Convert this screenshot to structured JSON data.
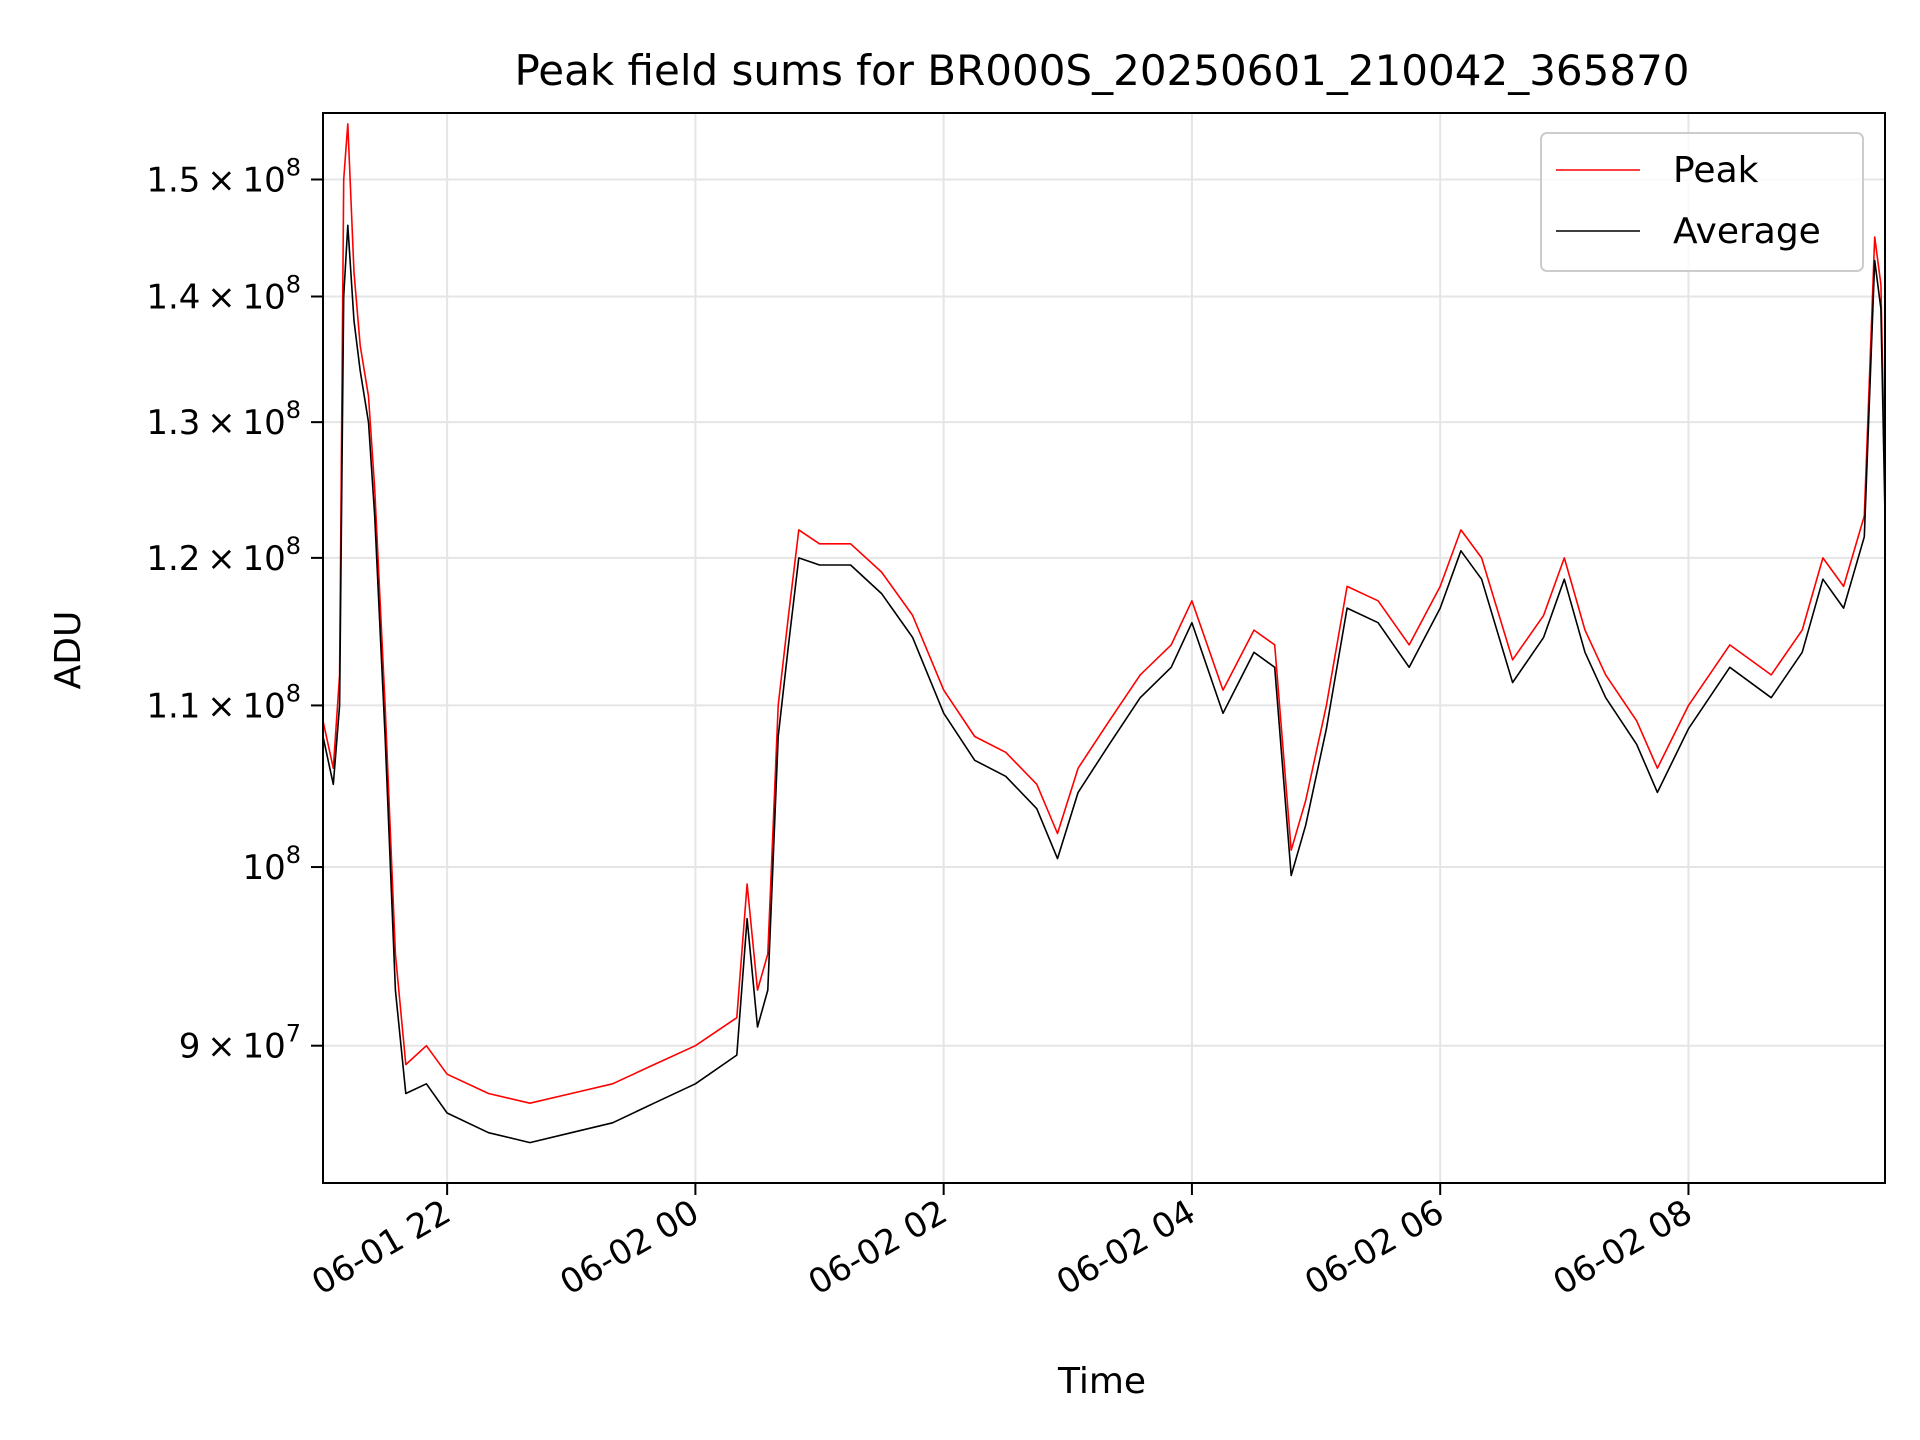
{
  "chart_data": {
    "type": "line",
    "title": "Peak field sums for BR000S_20250601_210042_365870",
    "xlabel": "Time",
    "ylabel": "ADU",
    "x_axis": {
      "type": "time",
      "range": [
        "2025-06-01 21:00",
        "2025-06-02 09:35"
      ],
      "ticks": [
        {
          "value": "2025-06-01 22:00",
          "label": "06-01 22"
        },
        {
          "value": "2025-06-02 00:00",
          "label": "06-02 00"
        },
        {
          "value": "2025-06-02 02:00",
          "label": "06-02 02"
        },
        {
          "value": "2025-06-02 04:00",
          "label": "06-02 04"
        },
        {
          "value": "2025-06-02 06:00",
          "label": "06-02 06"
        },
        {
          "value": "2025-06-02 08:00",
          "label": "06-02 08"
        }
      ]
    },
    "y_axis": {
      "scale": "log",
      "range": [
        83000000,
        156000000
      ],
      "ticks": [
        {
          "value": 90000000,
          "mant": "9",
          "exp": "7"
        },
        {
          "value": 100000000,
          "mant": "",
          "exp": "8"
        },
        {
          "value": 110000000,
          "mant": "1.1",
          "exp": "8"
        },
        {
          "value": 120000000,
          "mant": "1.2",
          "exp": "8"
        },
        {
          "value": 130000000,
          "mant": "1.3",
          "exp": "8"
        },
        {
          "value": 140000000,
          "mant": "1.4",
          "exp": "8"
        },
        {
          "value": 150000000,
          "mant": "1.5",
          "exp": "8"
        }
      ]
    },
    "grid": true,
    "legend_position": "top-right",
    "series": [
      {
        "name": "Peak",
        "color": "#ff0000",
        "points": [
          [
            "2025-06-01 21:00",
            109000000
          ],
          [
            "2025-06-01 21:05",
            106000000
          ],
          [
            "2025-06-01 21:08",
            112000000
          ],
          [
            "2025-06-01 21:10",
            150000000
          ],
          [
            "2025-06-01 21:12",
            155000000
          ],
          [
            "2025-06-01 21:15",
            142000000
          ],
          [
            "2025-06-01 21:18",
            136000000
          ],
          [
            "2025-06-01 21:22",
            132000000
          ],
          [
            "2025-06-01 21:25",
            125000000
          ],
          [
            "2025-06-01 21:30",
            110000000
          ],
          [
            "2025-06-01 21:35",
            95000000
          ],
          [
            "2025-06-01 21:40",
            89000000
          ],
          [
            "2025-06-01 21:50",
            90000000
          ],
          [
            "2025-06-01 22:00",
            88500000
          ],
          [
            "2025-06-01 22:20",
            87500000
          ],
          [
            "2025-06-01 22:40",
            87000000
          ],
          [
            "2025-06-01 23:00",
            87500000
          ],
          [
            "2025-06-01 23:20",
            88000000
          ],
          [
            "2025-06-01 23:40",
            89000000
          ],
          [
            "2025-06-02 00:00",
            90000000
          ],
          [
            "2025-06-02 00:20",
            91500000
          ],
          [
            "2025-06-02 00:25",
            99000000
          ],
          [
            "2025-06-02 00:30",
            93000000
          ],
          [
            "2025-06-02 00:35",
            95000000
          ],
          [
            "2025-06-02 00:40",
            110000000
          ],
          [
            "2025-06-02 00:45",
            116000000
          ],
          [
            "2025-06-02 00:50",
            122000000
          ],
          [
            "2025-06-02 01:00",
            121000000
          ],
          [
            "2025-06-02 01:15",
            121000000
          ],
          [
            "2025-06-02 01:30",
            119000000
          ],
          [
            "2025-06-02 01:45",
            116000000
          ],
          [
            "2025-06-02 02:00",
            111000000
          ],
          [
            "2025-06-02 02:15",
            108000000
          ],
          [
            "2025-06-02 02:30",
            107000000
          ],
          [
            "2025-06-02 02:45",
            105000000
          ],
          [
            "2025-06-02 02:55",
            102000000
          ],
          [
            "2025-06-02 03:05",
            106000000
          ],
          [
            "2025-06-02 03:20",
            109000000
          ],
          [
            "2025-06-02 03:35",
            112000000
          ],
          [
            "2025-06-02 03:50",
            114000000
          ],
          [
            "2025-06-02 04:00",
            117000000
          ],
          [
            "2025-06-02 04:15",
            111000000
          ],
          [
            "2025-06-02 04:30",
            115000000
          ],
          [
            "2025-06-02 04:40",
            114000000
          ],
          [
            "2025-06-02 04:48",
            101000000
          ],
          [
            "2025-06-02 04:55",
            104000000
          ],
          [
            "2025-06-02 05:05",
            110000000
          ],
          [
            "2025-06-02 05:15",
            118000000
          ],
          [
            "2025-06-02 05:30",
            117000000
          ],
          [
            "2025-06-02 05:45",
            114000000
          ],
          [
            "2025-06-02 06:00",
            118000000
          ],
          [
            "2025-06-02 06:10",
            122000000
          ],
          [
            "2025-06-02 06:20",
            120000000
          ],
          [
            "2025-06-02 06:35",
            113000000
          ],
          [
            "2025-06-02 06:50",
            116000000
          ],
          [
            "2025-06-02 07:00",
            120000000
          ],
          [
            "2025-06-02 07:10",
            115000000
          ],
          [
            "2025-06-02 07:20",
            112000000
          ],
          [
            "2025-06-02 07:35",
            109000000
          ],
          [
            "2025-06-02 07:45",
            106000000
          ],
          [
            "2025-06-02 08:00",
            110000000
          ],
          [
            "2025-06-02 08:20",
            114000000
          ],
          [
            "2025-06-02 08:40",
            112000000
          ],
          [
            "2025-06-02 08:55",
            115000000
          ],
          [
            "2025-06-02 09:05",
            120000000
          ],
          [
            "2025-06-02 09:15",
            118000000
          ],
          [
            "2025-06-02 09:25",
            123000000
          ],
          [
            "2025-06-02 09:30",
            145000000
          ],
          [
            "2025-06-02 09:33",
            141000000
          ],
          [
            "2025-06-02 09:35",
            125000000
          ]
        ]
      },
      {
        "name": "Average",
        "color": "#000000",
        "points": [
          [
            "2025-06-01 21:00",
            108000000
          ],
          [
            "2025-06-01 21:05",
            105000000
          ],
          [
            "2025-06-01 21:08",
            110000000
          ],
          [
            "2025-06-01 21:10",
            140000000
          ],
          [
            "2025-06-01 21:12",
            146000000
          ],
          [
            "2025-06-01 21:15",
            138000000
          ],
          [
            "2025-06-01 21:18",
            134000000
          ],
          [
            "2025-06-01 21:22",
            130000000
          ],
          [
            "2025-06-01 21:25",
            123000000
          ],
          [
            "2025-06-01 21:30",
            108000000
          ],
          [
            "2025-06-01 21:35",
            93000000
          ],
          [
            "2025-06-01 21:40",
            87500000
          ],
          [
            "2025-06-01 21:50",
            88000000
          ],
          [
            "2025-06-01 22:00",
            86500000
          ],
          [
            "2025-06-01 22:20",
            85500000
          ],
          [
            "2025-06-01 22:40",
            85000000
          ],
          [
            "2025-06-01 23:00",
            85500000
          ],
          [
            "2025-06-01 23:20",
            86000000
          ],
          [
            "2025-06-01 23:40",
            87000000
          ],
          [
            "2025-06-02 00:00",
            88000000
          ],
          [
            "2025-06-02 00:20",
            89500000
          ],
          [
            "2025-06-02 00:25",
            97000000
          ],
          [
            "2025-06-02 00:30",
            91000000
          ],
          [
            "2025-06-02 00:35",
            93000000
          ],
          [
            "2025-06-02 00:40",
            108000000
          ],
          [
            "2025-06-02 00:45",
            114000000
          ],
          [
            "2025-06-02 00:50",
            120000000
          ],
          [
            "2025-06-02 01:00",
            119500000
          ],
          [
            "2025-06-02 01:15",
            119500000
          ],
          [
            "2025-06-02 01:30",
            117500000
          ],
          [
            "2025-06-02 01:45",
            114500000
          ],
          [
            "2025-06-02 02:00",
            109500000
          ],
          [
            "2025-06-02 02:15",
            106500000
          ],
          [
            "2025-06-02 02:30",
            105500000
          ],
          [
            "2025-06-02 02:45",
            103500000
          ],
          [
            "2025-06-02 02:55",
            100500000
          ],
          [
            "2025-06-02 03:05",
            104500000
          ],
          [
            "2025-06-02 03:20",
            107500000
          ],
          [
            "2025-06-02 03:35",
            110500000
          ],
          [
            "2025-06-02 03:50",
            112500000
          ],
          [
            "2025-06-02 04:00",
            115500000
          ],
          [
            "2025-06-02 04:15",
            109500000
          ],
          [
            "2025-06-02 04:30",
            113500000
          ],
          [
            "2025-06-02 04:40",
            112500000
          ],
          [
            "2025-06-02 04:48",
            99500000
          ],
          [
            "2025-06-02 04:55",
            102500000
          ],
          [
            "2025-06-02 05:05",
            108500000
          ],
          [
            "2025-06-02 05:15",
            116500000
          ],
          [
            "2025-06-02 05:30",
            115500000
          ],
          [
            "2025-06-02 05:45",
            112500000
          ],
          [
            "2025-06-02 06:00",
            116500000
          ],
          [
            "2025-06-02 06:10",
            120500000
          ],
          [
            "2025-06-02 06:20",
            118500000
          ],
          [
            "2025-06-02 06:35",
            111500000
          ],
          [
            "2025-06-02 06:50",
            114500000
          ],
          [
            "2025-06-02 07:00",
            118500000
          ],
          [
            "2025-06-02 07:10",
            113500000
          ],
          [
            "2025-06-02 07:20",
            110500000
          ],
          [
            "2025-06-02 07:35",
            107500000
          ],
          [
            "2025-06-02 07:45",
            104500000
          ],
          [
            "2025-06-02 08:00",
            108500000
          ],
          [
            "2025-06-02 08:20",
            112500000
          ],
          [
            "2025-06-02 08:40",
            110500000
          ],
          [
            "2025-06-02 08:55",
            113500000
          ],
          [
            "2025-06-02 09:05",
            118500000
          ],
          [
            "2025-06-02 09:15",
            116500000
          ],
          [
            "2025-06-02 09:25",
            121500000
          ],
          [
            "2025-06-02 09:30",
            143000000
          ],
          [
            "2025-06-02 09:33",
            139000000
          ],
          [
            "2025-06-02 09:35",
            123000000
          ]
        ]
      }
    ]
  }
}
